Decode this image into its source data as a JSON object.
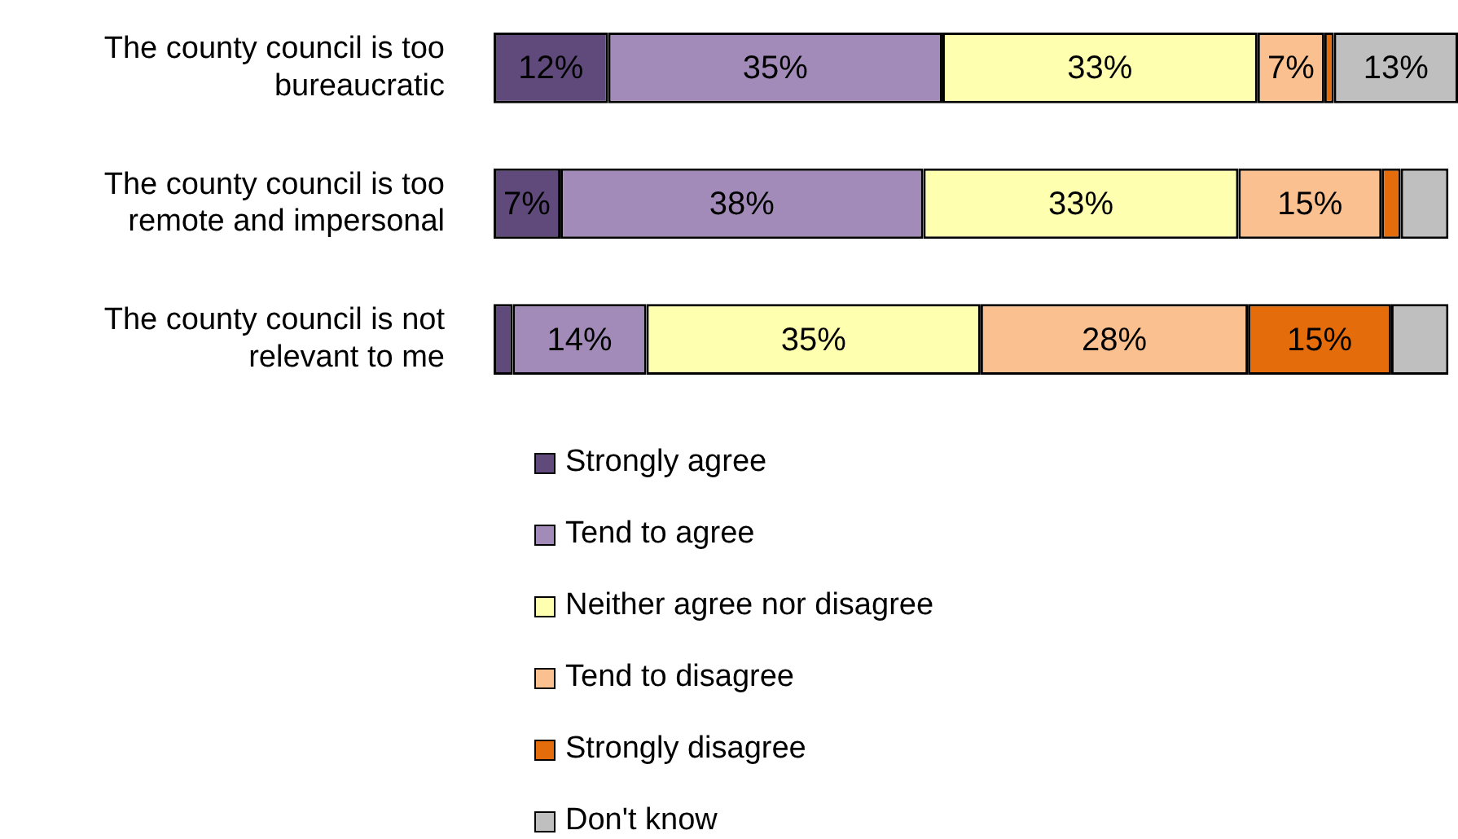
{
  "chart_data": {
    "type": "bar",
    "orientation": "horizontal",
    "stacked": true,
    "xlim": [
      0,
      101
    ],
    "tick_labels": "y",
    "legend": "bottom",
    "categories": [
      "The county council is too bureaucratic",
      "The county council is too remote and impersonal",
      "The county council is not relevant to me"
    ],
    "series": [
      {
        "name": "Strongly agree",
        "color": "#604a7b",
        "values": [
          12,
          7,
          2
        ],
        "value_labels": [
          "12%",
          "7%",
          null
        ]
      },
      {
        "name": "Tend to agree",
        "color": "#a28bb8",
        "values": [
          35,
          38,
          14
        ],
        "value_labels": [
          "35%",
          "38%",
          "14%"
        ]
      },
      {
        "name": "Neither agree nor disagree",
        "color": "#ffffb0",
        "values": [
          33,
          33,
          35
        ],
        "value_labels": [
          "33%",
          "33%",
          "35%"
        ]
      },
      {
        "name": "Tend to disagree",
        "color": "#fac090",
        "values": [
          7,
          15,
          28
        ],
        "value_labels": [
          "7%",
          "15%",
          "28%"
        ]
      },
      {
        "name": "Strongly disagree",
        "color": "#e46c0a",
        "values": [
          1,
          2,
          15
        ],
        "value_labels": [
          null,
          null,
          "15%"
        ]
      },
      {
        "name": "Don't know",
        "color": "#bfbfbf",
        "values": [
          13,
          5,
          6
        ],
        "value_labels": [
          "13%",
          null,
          null
        ]
      }
    ]
  }
}
